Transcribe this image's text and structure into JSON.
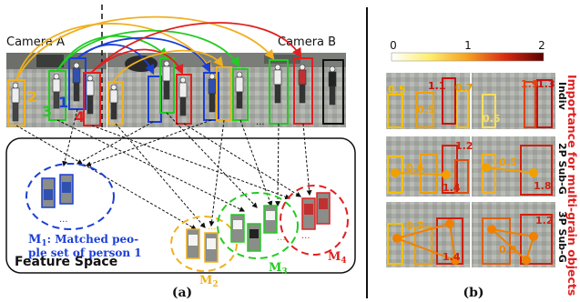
{
  "panel_a": {
    "camera_a_label": "Camera A",
    "camera_b_label": "Camera B",
    "person_ids": [
      "1",
      "2",
      "3",
      "4"
    ],
    "ellipsis": "...",
    "feature_space_label": "Feature Space",
    "m1_name": "M",
    "m1_sub": "1",
    "m1_desc_line1": ":  Matched peo-",
    "m1_desc_line2": "ple set of person 1",
    "m2_name": "M",
    "m2_sub": "2",
    "m3_name": "M",
    "m3_sub": "3",
    "m4_name": "M",
    "m4_sub": "4",
    "caption": "(a)",
    "colors": {
      "person1": "#1a3fd6",
      "person2": "#f0b020",
      "person3": "#22cc22",
      "person4": "#e02020"
    }
  },
  "panel_b": {
    "colorbar_ticks": [
      "0",
      "1",
      "2"
    ],
    "row_labels": [
      "Indiv",
      "2P Sub-G",
      "3P Sub-G"
    ],
    "side_title": "Importance for multi-grain objects",
    "values": {
      "row1": [
        "0.5",
        "0.9",
        "1.1",
        "0.7",
        "0.5",
        "1.9",
        "1.3"
      ],
      "row2": [
        "0.6",
        "1.4",
        "1.2",
        "0.5",
        "1.8"
      ],
      "row3": [
        "0.7",
        "1.4",
        "0.9",
        "1.2"
      ]
    },
    "caption": "(b)"
  }
}
